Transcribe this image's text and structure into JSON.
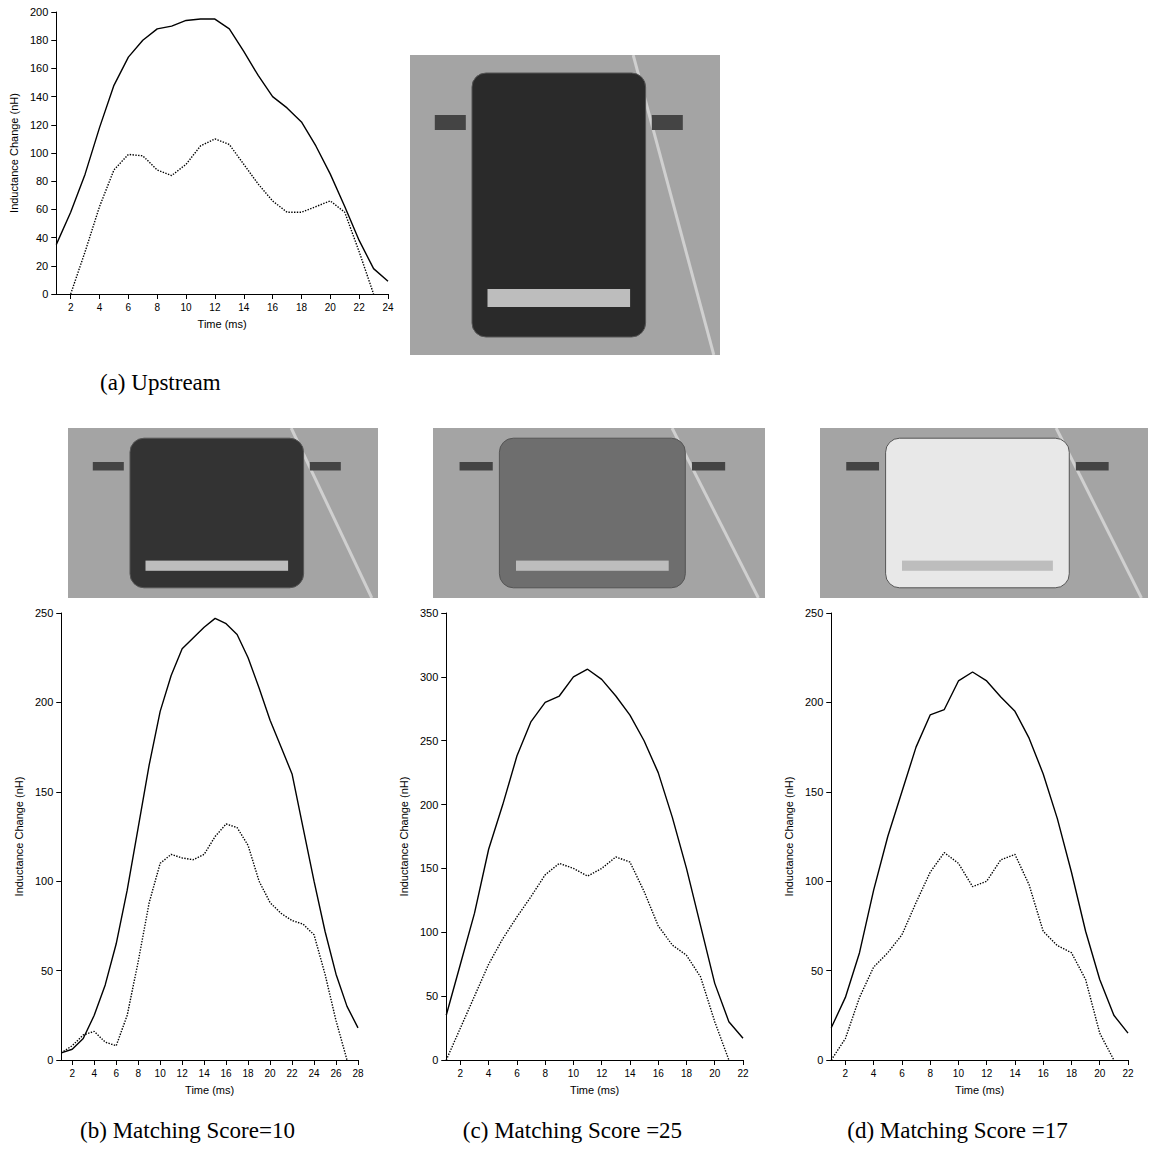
{
  "chart_data": [
    {
      "type": "line",
      "title": "(a) Upstream",
      "x_label": "Time (ms)",
      "y_label": "Inductance Change (nH)",
      "x": [
        1,
        2,
        3,
        4,
        5,
        6,
        7,
        8,
        9,
        10,
        11,
        12,
        13,
        14,
        15,
        16,
        17,
        18,
        19,
        20,
        21,
        22,
        23,
        24
      ],
      "xlim": [
        1,
        24
      ],
      "xticks": [
        2,
        4,
        6,
        8,
        10,
        12,
        14,
        16,
        18,
        20,
        22,
        24
      ],
      "ylim": [
        0,
        200
      ],
      "yticks": [
        0,
        20,
        40,
        60,
        80,
        100,
        120,
        140,
        160,
        180,
        200
      ],
      "grid": false,
      "series": [
        {
          "color": "#000000",
          "line_style": "solid",
          "values": [
            35,
            58,
            85,
            118,
            148,
            168,
            180,
            188,
            190,
            194,
            195,
            195,
            188,
            172,
            155,
            140,
            132,
            122,
            105,
            85,
            62,
            38,
            18,
            9
          ]
        },
        {
          "color": "#000000",
          "line_style": "dotted",
          "values": [
            null,
            0,
            30,
            62,
            88,
            99,
            98,
            88,
            84,
            92,
            105,
            110,
            106,
            92,
            78,
            66,
            58,
            58,
            62,
            66,
            58,
            30,
            0,
            null
          ]
        }
      ]
    },
    {
      "type": "line",
      "title": "(b) Matching Score=10",
      "x_label": "Time (ms)",
      "y_label": "Inductance Change (nH)",
      "x": [
        1,
        2,
        3,
        4,
        5,
        6,
        7,
        8,
        9,
        10,
        11,
        12,
        13,
        14,
        15,
        16,
        17,
        18,
        19,
        20,
        21,
        22,
        23,
        24,
        25,
        26,
        27,
        28
      ],
      "xlim": [
        1,
        28
      ],
      "xticks": [
        2,
        4,
        6,
        8,
        10,
        12,
        14,
        16,
        18,
        20,
        22,
        24,
        26,
        28
      ],
      "ylim": [
        0,
        250
      ],
      "yticks": [
        0,
        50,
        100,
        150,
        200,
        250
      ],
      "grid": false,
      "series": [
        {
          "color": "#000000",
          "line_style": "solid",
          "values": [
            4,
            6,
            12,
            25,
            42,
            65,
            95,
            130,
            165,
            195,
            215,
            230,
            236,
            242,
            247,
            244,
            238,
            225,
            208,
            190,
            175,
            160,
            130,
            100,
            72,
            48,
            30,
            18
          ]
        },
        {
          "color": "#000000",
          "line_style": "dotted",
          "values": [
            4,
            8,
            14,
            16,
            10,
            8,
            25,
            55,
            88,
            110,
            115,
            113,
            112,
            115,
            125,
            132,
            130,
            120,
            100,
            88,
            82,
            78,
            76,
            70,
            48,
            22,
            0,
            null
          ]
        }
      ]
    },
    {
      "type": "line",
      "title": "(c) Matching Score =25",
      "x_label": "Time (ms)",
      "y_label": "Inductance Change (nH)",
      "x": [
        1,
        2,
        3,
        4,
        5,
        6,
        7,
        8,
        9,
        10,
        11,
        12,
        13,
        14,
        15,
        16,
        17,
        18,
        19,
        20,
        21,
        22
      ],
      "xlim": [
        1,
        22
      ],
      "xticks": [
        2,
        4,
        6,
        8,
        10,
        12,
        14,
        16,
        18,
        20,
        22
      ],
      "ylim": [
        0,
        350
      ],
      "yticks": [
        0,
        50,
        100,
        150,
        200,
        250,
        300,
        350
      ],
      "grid": false,
      "series": [
        {
          "color": "#000000",
          "line_style": "solid",
          "values": [
            35,
            75,
            115,
            165,
            200,
            238,
            265,
            280,
            285,
            300,
            306,
            298,
            285,
            270,
            250,
            225,
            190,
            150,
            105,
            60,
            30,
            17
          ]
        },
        {
          "color": "#000000",
          "line_style": "dotted",
          "values": [
            0,
            25,
            50,
            75,
            95,
            112,
            128,
            145,
            154,
            150,
            144,
            150,
            159,
            155,
            132,
            105,
            90,
            82,
            65,
            30,
            0,
            null
          ]
        }
      ]
    },
    {
      "type": "line",
      "title": "(d) Matching Score =17",
      "x_label": "Time (ms)",
      "y_label": "Inductance Change (nH)",
      "x": [
        1,
        2,
        3,
        4,
        5,
        6,
        7,
        8,
        9,
        10,
        11,
        12,
        13,
        14,
        15,
        16,
        17,
        18,
        19,
        20,
        21,
        22
      ],
      "xlim": [
        1,
        22
      ],
      "xticks": [
        2,
        4,
        6,
        8,
        10,
        12,
        14,
        16,
        18,
        20,
        22
      ],
      "ylim": [
        0,
        250
      ],
      "yticks": [
        0,
        50,
        100,
        150,
        200,
        250
      ],
      "grid": false,
      "series": [
        {
          "color": "#000000",
          "line_style": "solid",
          "values": [
            18,
            35,
            60,
            95,
            125,
            150,
            175,
            193,
            196,
            212,
            217,
            212,
            203,
            195,
            180,
            160,
            135,
            105,
            72,
            45,
            25,
            15
          ]
        },
        {
          "color": "#000000",
          "line_style": "dotted",
          "values": [
            0,
            12,
            35,
            52,
            60,
            70,
            88,
            105,
            116,
            110,
            97,
            100,
            112,
            115,
            98,
            72,
            64,
            60,
            45,
            15,
            0,
            null
          ]
        }
      ]
    }
  ]
}
